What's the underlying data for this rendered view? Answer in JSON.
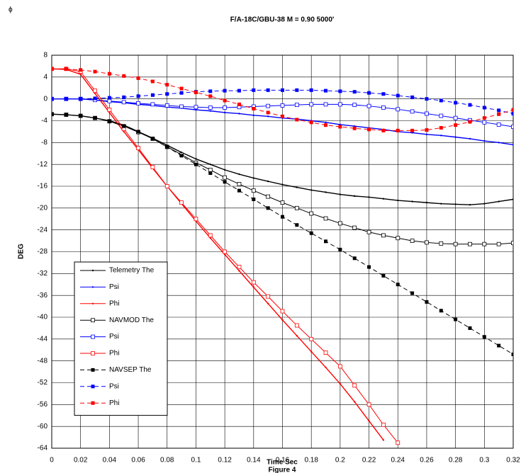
{
  "corner_symbol": "ϕ",
  "chart_data": {
    "type": "line",
    "title": "F/A-18C/GBU-38 M = 0.90 5000'",
    "xlabel": "Time Sec",
    "caption": "Figure 4",
    "ylabel": "DEG",
    "x": [
      0,
      0.01,
      0.02,
      0.03,
      0.04,
      0.05,
      0.06,
      0.07,
      0.08,
      0.09,
      0.1,
      0.11,
      0.12,
      0.13,
      0.14,
      0.15,
      0.16,
      0.17,
      0.18,
      0.19,
      0.2,
      0.21,
      0.22,
      0.23,
      0.24,
      0.25,
      0.26,
      0.27,
      0.28,
      0.29,
      0.3,
      0.31,
      0.32
    ],
    "xlim": [
      0,
      0.32
    ],
    "xticks": [
      0,
      0.02,
      0.04,
      0.06,
      0.08,
      0.1,
      0.12,
      0.14,
      0.16,
      0.18,
      0.2,
      0.22,
      0.24,
      0.26,
      0.28,
      0.3,
      0.32
    ],
    "ylim": [
      -64,
      8
    ],
    "yticks": [
      8,
      4,
      0,
      -4,
      -8,
      -12,
      -16,
      -20,
      -24,
      -28,
      -32,
      -36,
      -40,
      -44,
      -48,
      -52,
      -56,
      -60,
      -64
    ],
    "grid": true,
    "legend": "lower left",
    "series": [
      {
        "name": "Telemetry The",
        "color": "#000000",
        "dash": false,
        "marker": "dot",
        "values": [
          -2.8,
          -2.9,
          -3.1,
          -3.5,
          -4,
          -4.8,
          -6,
          -7.2,
          -8.5,
          -9.8,
          -11,
          -12,
          -13,
          -13.8,
          -14.5,
          -15.1,
          -15.7,
          -16.2,
          -16.7,
          -17.1,
          -17.5,
          -17.8,
          -18,
          -18.3,
          -18.6,
          -18.8,
          -19,
          -19.2,
          -19.3,
          -19.4,
          -19.2,
          -18.8,
          -18.4
        ]
      },
      {
        "name": "Psi",
        "color": "#0000ff",
        "dash": false,
        "marker": "dot",
        "values": [
          0,
          0,
          0,
          -0.2,
          -0.5,
          -0.7,
          -1,
          -1.2,
          -1.5,
          -1.7,
          -2,
          -2.2,
          -2.5,
          -2.7,
          -3,
          -3.2,
          -3.5,
          -3.7,
          -4,
          -4.3,
          -4.7,
          -5,
          -5.3,
          -5.6,
          -6,
          -6.2,
          -6.5,
          -6.7,
          -7,
          -7.3,
          -7.7,
          -8,
          -8.4
        ]
      },
      {
        "name": "Phi",
        "color": "#ff0000",
        "dash": false,
        "marker": "dot",
        "values": [
          5.5,
          5.4,
          4.5,
          1,
          -2.5,
          -6,
          -9.3,
          -12.7,
          -16,
          -19.2,
          -22.4,
          -25.5,
          -28.5,
          -31.5,
          -34.5,
          -37.5,
          -40.5,
          -43.4,
          -46.3,
          -49.2,
          -52.2,
          -55.5,
          -59,
          -62.5,
          null,
          null,
          null,
          null,
          null,
          null,
          null,
          null,
          null
        ]
      },
      {
        "name": "NAVMOD The",
        "color": "#000000",
        "dash": false,
        "marker": "square-open",
        "values": [
          -2.8,
          -2.9,
          -3.1,
          -3.5,
          -4.1,
          -5,
          -6.1,
          -7.3,
          -8.8,
          -10.2,
          -11.7,
          -13,
          -14.4,
          -15.6,
          -16.8,
          -17.9,
          -19,
          -20,
          -21,
          -21.9,
          -22.8,
          -23.6,
          -24.4,
          -25,
          -25.5,
          -26,
          -26.3,
          -26.5,
          -26.6,
          -26.6,
          -26.6,
          -26.6,
          -26.4
        ]
      },
      {
        "name": "Psi",
        "color": "#0000ff",
        "dash": false,
        "marker": "square-open",
        "values": [
          0,
          0,
          0,
          -0.2,
          -0.4,
          -0.6,
          -0.8,
          -1,
          -1.2,
          -1.4,
          -1.5,
          -1.6,
          -1.6,
          -1.5,
          -1.4,
          -1.3,
          -1.2,
          -1.1,
          -1,
          -1,
          -1,
          -1.1,
          -1.3,
          -1.6,
          -1.9,
          -2.3,
          -2.7,
          -3.1,
          -3.5,
          -3.9,
          -4.3,
          -4.7,
          -5.1
        ]
      },
      {
        "name": "Phi",
        "color": "#ff0000",
        "dash": false,
        "marker": "square-open",
        "values": [
          5.5,
          5.5,
          5,
          1.5,
          -2,
          -5.5,
          -9,
          -12.5,
          -16,
          -19,
          -22,
          -25,
          -28,
          -30.8,
          -33.6,
          -36.2,
          -38.9,
          -41.5,
          -44,
          -46.5,
          -49,
          -52.5,
          -56,
          -59.7,
          -63,
          null,
          null,
          null,
          null,
          null,
          null,
          null,
          null
        ]
      },
      {
        "name": "NAVSEP The",
        "color": "#000000",
        "dash": true,
        "marker": "square",
        "values": [
          -2.8,
          -2.9,
          -3.1,
          -3.5,
          -4.1,
          -5,
          -6,
          -7.3,
          -8.8,
          -10.4,
          -12,
          -13.6,
          -15.2,
          -16.8,
          -18.4,
          -20,
          -21.6,
          -23.1,
          -24.6,
          -26.1,
          -27.6,
          -29.2,
          -30.8,
          -32.4,
          -34,
          -35.6,
          -37.2,
          -38.8,
          -40.4,
          -42,
          -43.6,
          -45.2,
          -46.8
        ]
      },
      {
        "name": "Psi",
        "color": "#0000ff",
        "dash": true,
        "marker": "square",
        "values": [
          0,
          0,
          0,
          0.1,
          0.2,
          0.3,
          0.5,
          0.7,
          0.9,
          1.1,
          1.3,
          1.4,
          1.5,
          1.5,
          1.6,
          1.6,
          1.6,
          1.6,
          1.6,
          1.5,
          1.4,
          1.3,
          1.1,
          0.9,
          0.6,
          0.3,
          0,
          -0.3,
          -0.7,
          -1.1,
          -1.6,
          -2.1,
          -2.7
        ]
      },
      {
        "name": "Phi",
        "color": "#ff0000",
        "dash": true,
        "marker": "square",
        "values": [
          5.5,
          5.5,
          5.3,
          5,
          4.6,
          4.2,
          3.8,
          3.2,
          2.6,
          1.9,
          1.2,
          0.5,
          -0.3,
          -1,
          -1.8,
          -2.5,
          -3.2,
          -3.8,
          -4.3,
          -4.8,
          -5.1,
          -5.4,
          -5.6,
          -5.8,
          -5.8,
          -5.8,
          -5.7,
          -5.3,
          -4.8,
          -4.2,
          -3.5,
          -2.8,
          -2
        ]
      }
    ]
  }
}
